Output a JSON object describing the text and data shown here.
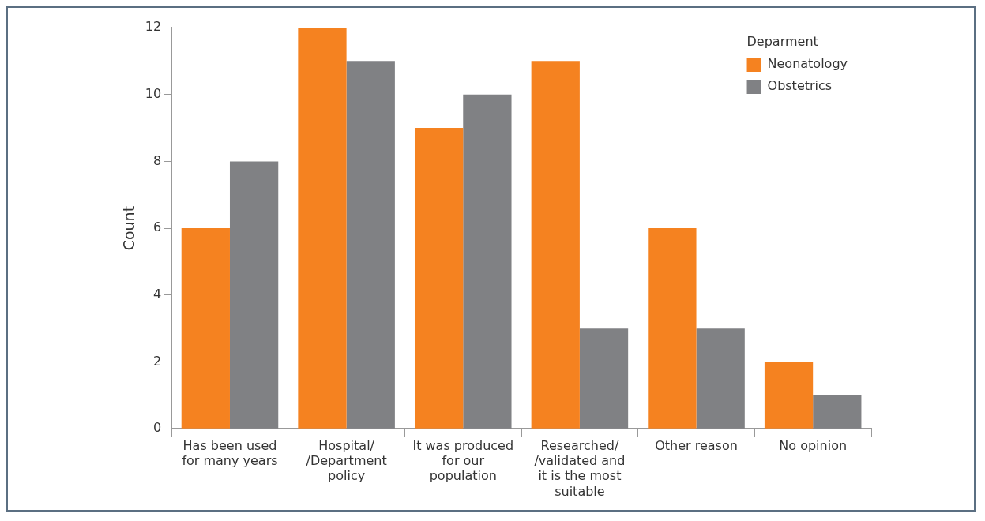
{
  "chart_data": {
    "type": "bar",
    "ylabel": "Count",
    "legend_title": "Deparment",
    "categories": [
      "Has been used for many years",
      "Hospital/ /Department policy",
      "It was produced for our population",
      "Researched/ /validated and it is the most suitable",
      "Other reason",
      "No opinion"
    ],
    "series": [
      {
        "name": "Neonatology",
        "color": "#f58220",
        "values": [
          6,
          12,
          9,
          11,
          6,
          2
        ]
      },
      {
        "name": "Obstetrics",
        "color": "#808184",
        "values": [
          8,
          11,
          10,
          3,
          3,
          1
        ]
      }
    ],
    "ylim": [
      0,
      12
    ],
    "yticks": [
      0,
      2,
      4,
      6,
      8,
      10,
      12
    ],
    "grid": false,
    "legend": "top right"
  }
}
